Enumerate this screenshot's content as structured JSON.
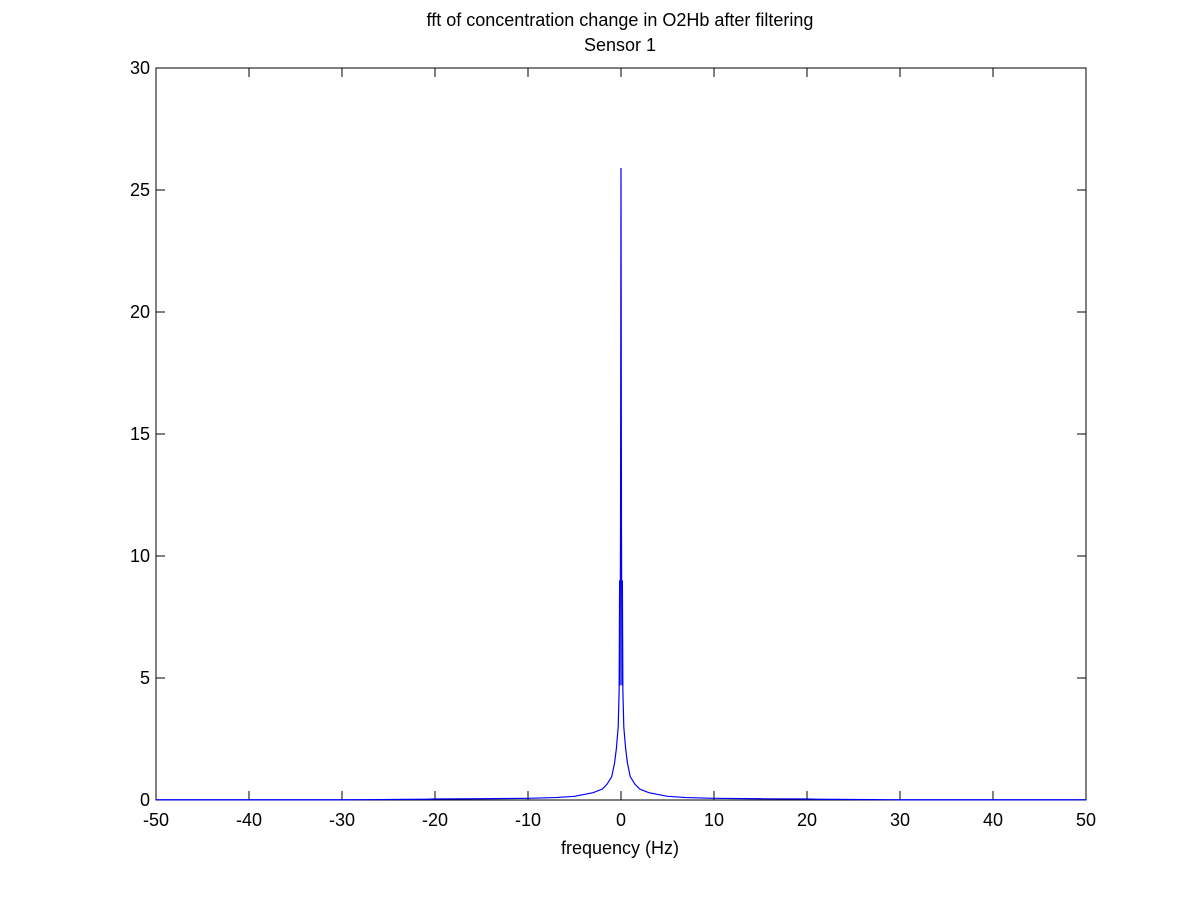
{
  "chart_data": {
    "type": "line",
    "title": "fft of concentration change in O2Hb after filtering",
    "subtitle": "Sensor 1",
    "xlabel": "frequency (Hz)",
    "ylabel": "",
    "xlim": [
      -50,
      50
    ],
    "ylim": [
      0,
      30
    ],
    "xticks": [
      -50,
      -40,
      -30,
      -20,
      -10,
      0,
      10,
      20,
      30,
      40,
      50
    ],
    "yticks": [
      0,
      5,
      10,
      15,
      20,
      25,
      30
    ],
    "grid": false,
    "box": true,
    "series": [
      {
        "color": "#0000ff",
        "x": [
          -50,
          -40,
          -30,
          -25,
          -21,
          -20,
          -15,
          -10,
          -7,
          -5,
          -3,
          -2,
          -1.5,
          -1,
          -0.7,
          -0.5,
          -0.3,
          -0.2,
          -0.15,
          -0.1,
          -0.05,
          0,
          0.05,
          0.1,
          0.15,
          0.2,
          0.3,
          0.5,
          0.7,
          1,
          1.5,
          2,
          3,
          5,
          7,
          10,
          15,
          20,
          21,
          25,
          30,
          40,
          50
        ],
        "y": [
          0.01,
          0.01,
          0.01,
          0.02,
          0.03,
          0.04,
          0.05,
          0.07,
          0.1,
          0.15,
          0.3,
          0.45,
          0.65,
          0.95,
          1.5,
          2.1,
          3.0,
          4.5,
          9.0,
          4.7,
          11.3,
          25.9,
          11.3,
          4.7,
          9.0,
          4.5,
          3.0,
          2.1,
          1.5,
          0.95,
          0.65,
          0.45,
          0.3,
          0.15,
          0.1,
          0.07,
          0.05,
          0.04,
          0.03,
          0.02,
          0.01,
          0.01,
          0.01
        ]
      }
    ]
  }
}
